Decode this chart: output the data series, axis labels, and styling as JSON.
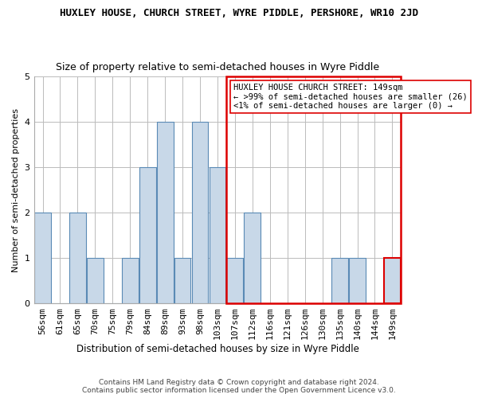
{
  "title": "HUXLEY HOUSE, CHURCH STREET, WYRE PIDDLE, PERSHORE, WR10 2JD",
  "subtitle": "Size of property relative to semi-detached houses in Wyre Piddle",
  "xlabel": "Distribution of semi-detached houses by size in Wyre Piddle",
  "ylabel": "Number of semi-detached properties",
  "categories": [
    "56sqm",
    "61sqm",
    "65sqm",
    "70sqm",
    "75sqm",
    "79sqm",
    "84sqm",
    "89sqm",
    "93sqm",
    "98sqm",
    "103sqm",
    "107sqm",
    "112sqm",
    "116sqm",
    "121sqm",
    "126sqm",
    "130sqm",
    "135sqm",
    "140sqm",
    "144sqm",
    "149sqm"
  ],
  "values": [
    2,
    0,
    2,
    1,
    0,
    1,
    3,
    4,
    1,
    4,
    3,
    1,
    2,
    0,
    0,
    0,
    0,
    1,
    1,
    0,
    1
  ],
  "bar_color": "#c8d8e8",
  "bar_edge_color": "#5a8ab5",
  "highlight_index": 20,
  "grid_color": "#bbbbbb",
  "ylim": [
    0,
    5
  ],
  "yticks": [
    0,
    1,
    2,
    3,
    4,
    5
  ],
  "legend_title": "HUXLEY HOUSE CHURCH STREET: 149sqm",
  "legend_line1": "← >99% of semi-detached houses are smaller (26)",
  "legend_line2": "<1% of semi-detached houses are larger (0) →",
  "footer1": "Contains HM Land Registry data © Crown copyright and database right 2024.",
  "footer2": "Contains public sector information licensed under the Open Government Licence v3.0.",
  "box_edge_color": "#dd0000",
  "background_color": "#ffffff",
  "title_fontsize": 9,
  "subtitle_fontsize": 9,
  "ylabel_fontsize": 8,
  "xlabel_fontsize": 8.5,
  "tick_fontsize": 8,
  "legend_fontsize": 7.5,
  "footer_fontsize": 6.5
}
